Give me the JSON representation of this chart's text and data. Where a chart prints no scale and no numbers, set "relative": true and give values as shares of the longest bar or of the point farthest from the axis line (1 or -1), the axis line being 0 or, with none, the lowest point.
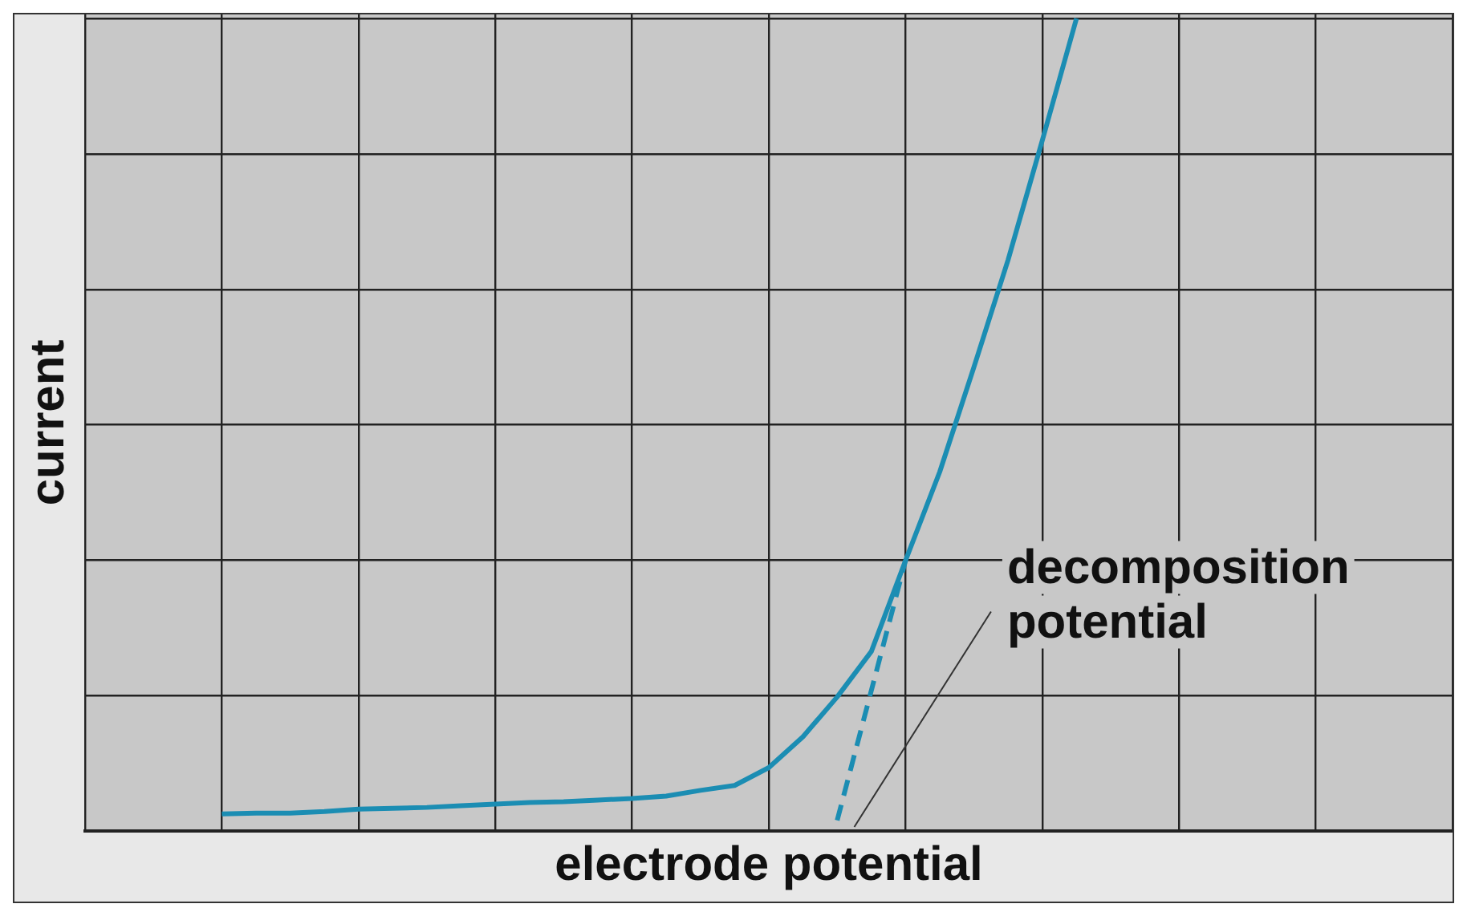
{
  "chart_data": {
    "type": "line",
    "relative": true,
    "xlabel": "electrode potential",
    "ylabel": "current",
    "grid": true,
    "legend": false,
    "marker": "none",
    "categories": [
      null,
      null,
      null,
      null,
      null,
      null,
      null,
      null,
      null,
      null,
      null,
      null,
      null,
      null,
      null,
      null,
      null,
      null,
      null,
      null,
      null,
      null,
      null,
      null,
      null,
      null,
      null,
      null,
      null,
      null,
      null,
      null,
      null,
      null,
      null,
      null,
      null,
      null,
      null,
      null,
      null
    ],
    "series": [
      {
        "color": "#1b8db3",
        "line_style": "solid",
        "values": [
          null,
          null,
          null,
          null,
          0.021,
          0.022,
          0.022,
          0.024,
          0.027,
          0.028,
          0.029,
          0.031,
          0.033,
          0.035,
          0.036,
          0.038,
          0.04,
          0.043,
          0.05,
          0.056,
          0.078,
          0.116,
          0.165,
          0.221,
          0.333,
          0.442,
          0.571,
          0.703,
          0.85,
          1,
          null,
          null,
          null,
          null,
          null,
          null,
          null,
          null,
          null,
          null,
          null
        ]
      },
      {
        "color": "#1b8db3",
        "line_style": "dashed",
        "values": [
          null,
          null,
          null,
          null,
          null,
          null,
          null,
          null,
          null,
          null,
          null,
          null,
          null,
          null,
          null,
          null,
          null,
          null,
          null,
          null,
          null,
          null,
          0.013,
          null,
          0.333,
          null,
          null,
          null,
          null,
          null,
          null,
          null,
          null,
          null,
          null,
          null,
          null,
          null,
          null,
          null,
          null
        ]
      }
    ],
    "annotations": [
      "decomposition\npotential"
    ]
  }
}
